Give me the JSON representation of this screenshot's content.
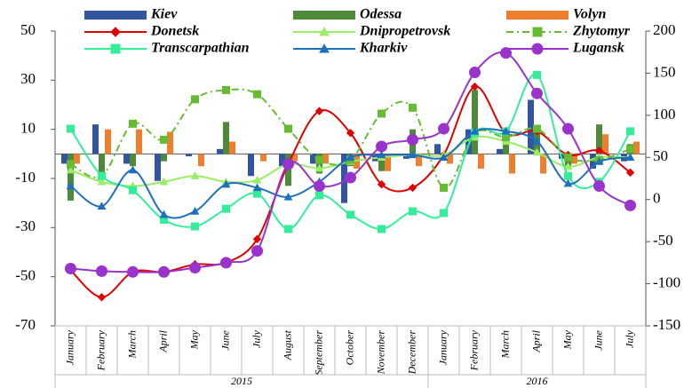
{
  "chart_data": {
    "type": "bar_line",
    "categories": [
      "January",
      "February",
      "March",
      "April",
      "May",
      "June",
      "July",
      "August",
      "September",
      "October",
      "November",
      "December",
      "January",
      "February",
      "March",
      "April",
      "May",
      "June",
      "July"
    ],
    "groups": [
      {
        "label": "2015",
        "size": 12
      },
      {
        "label": "2016",
        "size": 7
      }
    ],
    "ylim": [
      -70,
      50
    ],
    "yticks": [
      -70,
      -50,
      -30,
      -10,
      10,
      30,
      50
    ],
    "y2lim": [
      -150,
      200
    ],
    "y2ticks": [
      -150,
      -100,
      -50,
      0,
      50,
      100,
      150,
      200
    ],
    "series": [
      {
        "name": "Kiev",
        "kind": "bar",
        "color": "#3355a0",
        "values": [
          -4,
          12,
          -4,
          -11,
          -1,
          2,
          -9,
          -5,
          -4,
          -20,
          -3,
          -2,
          4,
          10,
          2,
          22,
          -2,
          -6,
          -3
        ]
      },
      {
        "name": "Odessa",
        "kind": "bar",
        "color": "#4e8a3a",
        "values": [
          -19,
          -8,
          -5,
          -3,
          0,
          13,
          0,
          -13,
          -8,
          -5,
          -7,
          10,
          0,
          26,
          10,
          10,
          -6,
          12,
          4
        ]
      },
      {
        "name": "Volyn",
        "kind": "bar",
        "color": "#ee7f2f",
        "values": [
          -4,
          10,
          10,
          9,
          -5,
          5,
          -3,
          -3,
          -4,
          -6,
          -7,
          -5,
          -4,
          -6,
          -8,
          -8,
          -4,
          8,
          5
        ]
      },
      {
        "name": "Donetsk",
        "kind": "line",
        "axis": "y2",
        "color": "#e00000",
        "marker": "diamond",
        "values": [
          -84,
          -116,
          -86,
          -86,
          -77,
          -75,
          -47,
          42,
          105,
          79,
          18,
          14,
          53,
          134,
          79,
          81,
          53,
          58,
          32
        ]
      },
      {
        "name": "Dnipropetrovsk",
        "kind": "line",
        "axis": "y2",
        "color": "#99ee66",
        "marker": "triangle",
        "values": [
          35,
          21,
          16,
          21,
          28,
          21,
          23,
          42,
          37,
          45,
          50,
          53,
          53,
          74,
          69,
          56,
          39,
          50,
          50
        ]
      },
      {
        "name": "Zhytomyr",
        "kind": "line",
        "axis": "y2",
        "color": "#66bb33",
        "marker": "square",
        "dash": "dashdot",
        "values": [
          42,
          28,
          90,
          71,
          119,
          130,
          125,
          84,
          47,
          47,
          102,
          109,
          14,
          79,
          74,
          84,
          50,
          47,
          60
        ]
      },
      {
        "name": "Transcarpathian",
        "kind": "line",
        "axis": "y2",
        "color": "#33ee99",
        "marker": "square",
        "values": [
          84,
          28,
          11,
          -24,
          -32,
          -11,
          7,
          -35,
          5,
          -18,
          -35,
          -14,
          -16,
          79,
          81,
          148,
          28,
          21,
          81
        ]
      },
      {
        "name": "Kharkiv",
        "kind": "line",
        "axis": "y2",
        "color": "#1f6fbf",
        "marker": "triangle",
        "values": [
          16,
          -8,
          35,
          -18,
          -14,
          18,
          14,
          3,
          21,
          50,
          53,
          53,
          50,
          81,
          81,
          69,
          19,
          45,
          50
        ]
      },
      {
        "name": "Lugansk",
        "kind": "line",
        "axis": "y2",
        "color": "#9933cc",
        "marker": "circle",
        "values": [
          -82,
          -85,
          -86,
          -86,
          -81,
          -75,
          -61,
          42,
          16,
          26,
          63,
          71,
          84,
          151,
          174,
          126,
          84,
          16,
          -7
        ]
      }
    ]
  }
}
